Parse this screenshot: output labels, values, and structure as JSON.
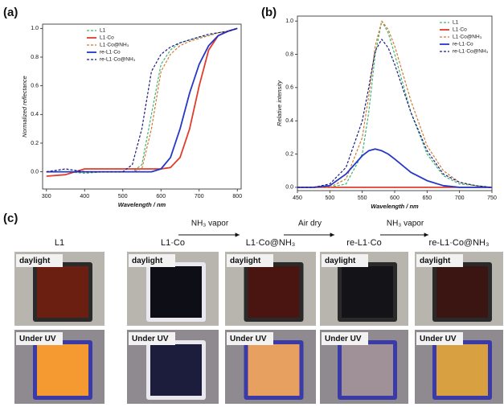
{
  "chart_data": [
    {
      "type": "line",
      "label": "(a)",
      "xlabel": "Wavelength / nm",
      "ylabel": "Normalized reflectance",
      "x": [
        300,
        350,
        400,
        450,
        500,
        525,
        550,
        575,
        600,
        625,
        650,
        675,
        700,
        725,
        750,
        775,
        800
      ],
      "xlim": [
        290,
        810
      ],
      "xticks": [
        300,
        400,
        500,
        600,
        700,
        800
      ],
      "ylim": [
        -0.12,
        1.03
      ],
      "yticks": [
        {
          "value": 0,
          "label": "0.0"
        },
        0.2,
        0.4,
        0.6,
        0.8,
        {
          "value": 1,
          "label": "1.0"
        }
      ],
      "legend": "upper left",
      "series": [
        {
          "name": "L1",
          "color": "#3cb371",
          "dashed": true,
          "values": [
            0,
            0,
            -0.01,
            0,
            0,
            0,
            0.05,
            0.4,
            0.75,
            0.85,
            0.9,
            0.92,
            0.94,
            0.95,
            0.97,
            0.98,
            1
          ]
        },
        {
          "name": "L1·Co",
          "color": "#e03c2c",
          "dashed": false,
          "values": [
            -0.03,
            -0.02,
            0.02,
            0.02,
            0.02,
            0.02,
            0.02,
            0.02,
            0.02,
            0.03,
            0.1,
            0.3,
            0.6,
            0.85,
            0.95,
            0.98,
            1
          ]
        },
        {
          "name": "L1·Co@NH₃",
          "color": "#d2782c",
          "dashed": true,
          "values": [
            0,
            0,
            0,
            0,
            0,
            0,
            0.02,
            0.3,
            0.7,
            0.82,
            0.88,
            0.91,
            0.93,
            0.95,
            0.97,
            0.98,
            1
          ]
        },
        {
          "name": "re-L1·Co",
          "color": "#2438c8",
          "dashed": false,
          "values": [
            0,
            0,
            0,
            0,
            0,
            0,
            0,
            0,
            0.02,
            0.1,
            0.3,
            0.55,
            0.75,
            0.88,
            0.95,
            0.98,
            1
          ]
        },
        {
          "name": "re-L1·Co@NH₃",
          "color": "#1a1a80",
          "dashed": true,
          "values": [
            0,
            0.02,
            0,
            0,
            0,
            0.05,
            0.3,
            0.7,
            0.82,
            0.87,
            0.9,
            0.92,
            0.94,
            0.96,
            0.97,
            0.98,
            1
          ]
        }
      ]
    },
    {
      "type": "line",
      "label": "(b)",
      "xlabel": "Wavelength / nm",
      "ylabel": "Relative intensity",
      "x": [
        450,
        475,
        500,
        525,
        550,
        560,
        570,
        580,
        590,
        600,
        625,
        650,
        675,
        700,
        725,
        750
      ],
      "xlim": [
        450,
        750
      ],
      "xticks": [
        450,
        500,
        550,
        600,
        650,
        700,
        750
      ],
      "ylim": [
        -0.02,
        1.03
      ],
      "yticks": [
        {
          "value": 0,
          "label": "0.0"
        },
        0.2,
        0.4,
        0.6,
        0.8,
        {
          "value": 1,
          "label": "1.0"
        }
      ],
      "legend": "upper right",
      "series": [
        {
          "name": "L1",
          "color": "#3cb371",
          "dashed": true,
          "values": [
            0,
            0,
            0,
            0.02,
            0.2,
            0.45,
            0.8,
            1,
            0.93,
            0.8,
            0.45,
            0.2,
            0.07,
            0.02,
            0.01,
            0
          ]
        },
        {
          "name": "L1·Co",
          "color": "#e03c2c",
          "dashed": false,
          "values": [
            0,
            0,
            0,
            0,
            0,
            0,
            0,
            0,
            0,
            0,
            0,
            0,
            0,
            0,
            0,
            0
          ]
        },
        {
          "name": "L1·Co@NH₃",
          "color": "#d2782c",
          "dashed": true,
          "values": [
            0,
            0,
            0,
            0.05,
            0.3,
            0.55,
            0.85,
            1,
            0.95,
            0.85,
            0.52,
            0.25,
            0.1,
            0.03,
            0.01,
            0
          ]
        },
        {
          "name": "re-L1·Co",
          "color": "#2438c8",
          "dashed": false,
          "values": [
            0,
            0,
            0.01,
            0.08,
            0.19,
            0.22,
            0.23,
            0.22,
            0.2,
            0.17,
            0.09,
            0.04,
            0.01,
            0,
            0,
            0
          ]
        },
        {
          "name": "re-L1·Co@NH₃",
          "color": "#1a1a80",
          "dashed": true,
          "values": [
            0,
            0,
            0.02,
            0.12,
            0.4,
            0.6,
            0.82,
            0.89,
            0.84,
            0.74,
            0.45,
            0.22,
            0.08,
            0.03,
            0.01,
            0
          ]
        }
      ]
    }
  ],
  "photos": {
    "label": "(c)",
    "samples": [
      {
        "name": "L1",
        "daylight": "daylight",
        "uv": "Under UV"
      },
      {
        "name": "L1·Co",
        "daylight": "daylight",
        "uv": "Under UV"
      },
      {
        "name": "L1·Co@NH₃",
        "daylight": "daylight",
        "uv": "Under UV"
      },
      {
        "name": "re-L1·Co",
        "daylight": "daylight",
        "uv": "Under UV"
      },
      {
        "name": "re-L1·Co@NH₃",
        "daylight": "daylight",
        "uv": "Under UV"
      }
    ],
    "arrows": [
      "NH₃ vapor",
      "Air dry",
      "NH₃ vapor"
    ]
  }
}
